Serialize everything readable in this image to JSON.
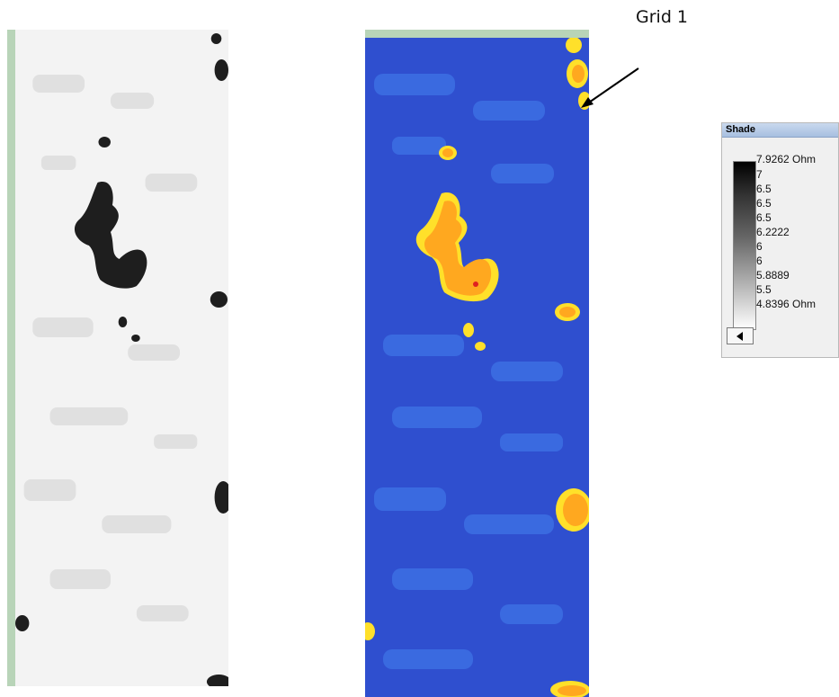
{
  "annotation": {
    "label": "Grid 1"
  },
  "shade_legend": {
    "title": "Shade",
    "ticks": [
      "7.9262 Ohm",
      "7",
      "6.5",
      "6.5",
      "6.5",
      "6.2222",
      "6",
      "6",
      "5.8889",
      "5.5",
      "4.8396 Ohm"
    ]
  },
  "colors": {
    "panel_border": "#b8d4b8",
    "blue_low": "#2f4fcf",
    "blue_mid": "#3a6ae0",
    "orange_high": "#ffa81f",
    "yellow_edge": "#ffe02a",
    "dark_anomaly": "#1e1e1e"
  }
}
